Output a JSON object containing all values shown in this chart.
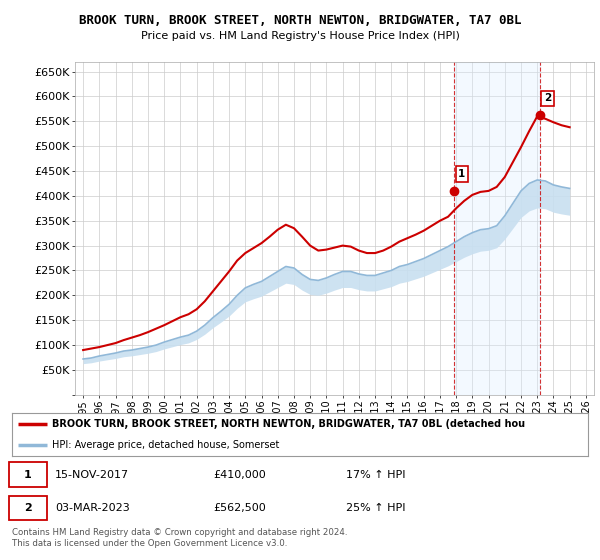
{
  "title": "BROOK TURN, BROOK STREET, NORTH NEWTON, BRIDGWATER, TA7 0BL",
  "subtitle": "Price paid vs. HM Land Registry's House Price Index (HPI)",
  "ylim": [
    0,
    670000
  ],
  "yticks": [
    0,
    50000,
    100000,
    150000,
    200000,
    250000,
    300000,
    350000,
    400000,
    450000,
    500000,
    550000,
    600000,
    650000
  ],
  "xlim_start": 1994.5,
  "xlim_end": 2026.5,
  "grid_color": "#cccccc",
  "background_color": "#ffffff",
  "plot_bg_color": "#ffffff",
  "red_line_color": "#cc0000",
  "blue_line_color": "#90b8d8",
  "blue_fill_color": "#c8dff0",
  "legend_label_red": "BROOK TURN, BROOK STREET, NORTH NEWTON, BRIDGWATER, TA7 0BL (detached hou",
  "legend_label_blue": "HPI: Average price, detached house, Somerset",
  "sale1_date": "15-NOV-2017",
  "sale1_price": "£410,000",
  "sale1_hpi": "17% ↑ HPI",
  "sale1_year": 2017.88,
  "sale1_value": 410000,
  "sale2_date": "03-MAR-2023",
  "sale2_price": "£562,500",
  "sale2_hpi": "25% ↑ HPI",
  "sale2_year": 2023.17,
  "sale2_value": 562500,
  "hpi_years": [
    1995.0,
    1995.5,
    1996.0,
    1996.5,
    1997.0,
    1997.5,
    1998.0,
    1998.5,
    1999.0,
    1999.5,
    2000.0,
    2000.5,
    2001.0,
    2001.5,
    2002.0,
    2002.5,
    2003.0,
    2003.5,
    2004.0,
    2004.5,
    2005.0,
    2005.5,
    2006.0,
    2006.5,
    2007.0,
    2007.5,
    2008.0,
    2008.5,
    2009.0,
    2009.5,
    2010.0,
    2010.5,
    2011.0,
    2011.5,
    2012.0,
    2012.5,
    2013.0,
    2013.5,
    2014.0,
    2014.5,
    2015.0,
    2015.5,
    2016.0,
    2016.5,
    2017.0,
    2017.5,
    2018.0,
    2018.5,
    2019.0,
    2019.5,
    2020.0,
    2020.5,
    2021.0,
    2021.5,
    2022.0,
    2022.5,
    2023.0,
    2023.5,
    2024.0,
    2024.5,
    2025.0
  ],
  "hpi_values": [
    72000,
    74000,
    78000,
    81000,
    84000,
    88000,
    90000,
    93000,
    96000,
    100000,
    106000,
    111000,
    116000,
    120000,
    128000,
    140000,
    155000,
    168000,
    182000,
    200000,
    215000,
    222000,
    228000,
    238000,
    248000,
    258000,
    255000,
    242000,
    232000,
    230000,
    235000,
    242000,
    248000,
    248000,
    243000,
    240000,
    240000,
    245000,
    250000,
    258000,
    262000,
    268000,
    274000,
    282000,
    290000,
    298000,
    308000,
    318000,
    326000,
    332000,
    334000,
    340000,
    360000,
    385000,
    410000,
    425000,
    432000,
    430000,
    422000,
    418000,
    415000
  ],
  "price_years": [
    1995.0,
    1995.5,
    1996.0,
    1996.5,
    1997.0,
    1997.5,
    1998.0,
    1998.5,
    1999.0,
    1999.5,
    2000.0,
    2000.5,
    2001.0,
    2001.5,
    2002.0,
    2002.5,
    2003.0,
    2003.5,
    2004.0,
    2004.5,
    2005.0,
    2005.5,
    2006.0,
    2006.5,
    2007.0,
    2007.5,
    2008.0,
    2008.5,
    2009.0,
    2009.5,
    2010.0,
    2010.5,
    2011.0,
    2011.5,
    2012.0,
    2012.5,
    2013.0,
    2013.5,
    2014.0,
    2014.5,
    2015.0,
    2015.5,
    2016.0,
    2016.5,
    2017.0,
    2017.5,
    2018.0,
    2018.5,
    2019.0,
    2019.5,
    2020.0,
    2020.5,
    2021.0,
    2021.5,
    2022.0,
    2022.5,
    2023.0,
    2023.5,
    2024.0,
    2024.5,
    2025.0
  ],
  "price_values": [
    90000,
    93000,
    96000,
    100000,
    104000,
    110000,
    115000,
    120000,
    126000,
    133000,
    140000,
    148000,
    156000,
    162000,
    172000,
    188000,
    208000,
    228000,
    248000,
    270000,
    285000,
    295000,
    305000,
    318000,
    332000,
    342000,
    335000,
    318000,
    300000,
    290000,
    292000,
    296000,
    300000,
    298000,
    290000,
    285000,
    285000,
    290000,
    298000,
    308000,
    315000,
    322000,
    330000,
    340000,
    350000,
    358000,
    375000,
    390000,
    402000,
    408000,
    410000,
    418000,
    438000,
    468000,
    498000,
    530000,
    560000,
    555000,
    548000,
    542000,
    538000
  ],
  "xtick_years": [
    1995,
    1996,
    1997,
    1998,
    1999,
    2000,
    2001,
    2002,
    2003,
    2004,
    2005,
    2006,
    2007,
    2008,
    2009,
    2010,
    2011,
    2012,
    2013,
    2014,
    2015,
    2016,
    2017,
    2018,
    2019,
    2020,
    2021,
    2022,
    2023,
    2024,
    2025,
    2026
  ]
}
